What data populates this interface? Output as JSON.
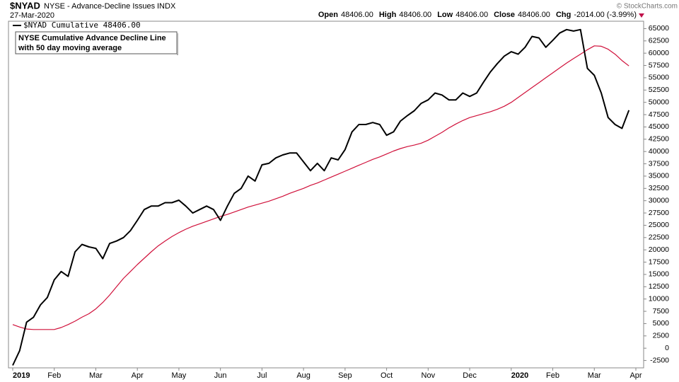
{
  "chart_data": {
    "type": "line",
    "symbol": "$NYAD",
    "title": "NYSE - Advance-Decline Issues",
    "exchange": "INDX",
    "date": "27-Mar-2020",
    "quote": [
      {
        "label": "Open",
        "value": "48406.00"
      },
      {
        "label": "High",
        "value": "48406.00"
      },
      {
        "label": "Low",
        "value": "48406.00"
      },
      {
        "label": "Close",
        "value": "48406.00"
      },
      {
        "label": "Chg",
        "value": "-2014.00 (-3.99%)"
      }
    ],
    "credit": "© StockCharts.com",
    "annotation": [
      "NYSE Cumulative Advance Decline Line",
      "with 50 day moving average"
    ],
    "categories": [
      "2019",
      null,
      null,
      null,
      null,
      null,
      "Feb",
      null,
      null,
      null,
      null,
      null,
      "Mar",
      null,
      null,
      null,
      null,
      null,
      "Apr",
      null,
      null,
      null,
      null,
      null,
      "May",
      null,
      null,
      null,
      null,
      null,
      "Jun",
      null,
      null,
      null,
      null,
      null,
      "Jul",
      null,
      null,
      null,
      null,
      null,
      "Aug",
      null,
      null,
      null,
      null,
      null,
      "Sep",
      null,
      null,
      null,
      null,
      null,
      "Oct",
      null,
      null,
      null,
      null,
      null,
      "Nov",
      null,
      null,
      null,
      null,
      null,
      "Dec",
      null,
      null,
      null,
      null,
      null,
      "2020",
      null,
      null,
      null,
      null,
      null,
      "Feb",
      null,
      null,
      null,
      null,
      null,
      "Mar",
      null,
      null,
      null,
      null,
      null,
      "Apr"
    ],
    "series": [
      {
        "name": "$NYAD Cumulative 48406.00",
        "color": "#000000",
        "width": 2,
        "values": [
          -3500,
          -500,
          5300,
          6300,
          8800,
          10300,
          13900,
          15600,
          14600,
          19600,
          21100,
          20600,
          20300,
          18200,
          21300,
          21800,
          22500,
          23900,
          26000,
          28200,
          28900,
          28900,
          29600,
          29600,
          30100,
          28900,
          27500,
          28200,
          28900,
          28200,
          26000,
          28900,
          31500,
          32500,
          35000,
          34000,
          37300,
          37600,
          38700,
          39300,
          39700,
          39700,
          37900,
          36100,
          37600,
          36100,
          38700,
          38300,
          40400,
          44000,
          45500,
          45500,
          45900,
          45500,
          43300,
          44000,
          46200,
          47300,
          48300,
          49800,
          50500,
          51900,
          51500,
          50500,
          50500,
          51900,
          51200,
          51900,
          54100,
          56200,
          57900,
          59400,
          60300,
          59800,
          61200,
          63400,
          63100,
          61200,
          62600,
          64100,
          64800,
          64500,
          64800,
          56900,
          55500,
          51900,
          46900,
          45500,
          44700,
          48406,
          null
        ]
      },
      {
        "color": "#d0103a",
        "width": 1.2,
        "values": [
          4800,
          4300,
          3900,
          3800,
          3800,
          3800,
          3800,
          4200,
          4800,
          5500,
          6300,
          7000,
          8000,
          9300,
          10800,
          12500,
          14200,
          15600,
          17000,
          18300,
          19600,
          20800,
          21800,
          22700,
          23500,
          24200,
          24800,
          25300,
          25800,
          26300,
          26800,
          27200,
          27700,
          28200,
          28700,
          29100,
          29500,
          29900,
          30400,
          30900,
          31500,
          32000,
          32500,
          33100,
          33600,
          34200,
          34800,
          35400,
          36000,
          36600,
          37200,
          37800,
          38400,
          38900,
          39500,
          40100,
          40600,
          41000,
          41300,
          41700,
          42300,
          43100,
          43900,
          44800,
          45600,
          46300,
          46900,
          47300,
          47700,
          48100,
          48600,
          49200,
          50000,
          51000,
          52000,
          53000,
          54000,
          55000,
          56000,
          57000,
          58000,
          58900,
          59800,
          60700,
          61500,
          61400,
          60800,
          59800,
          58500,
          57400,
          null
        ]
      }
    ],
    "ylim": [
      -4000,
      66500
    ],
    "yticks": [
      -2500,
      0,
      2500,
      5000,
      7500,
      10000,
      12500,
      15000,
      17500,
      20000,
      22500,
      25000,
      27500,
      30000,
      32500,
      35000,
      37500,
      40000,
      42500,
      45000,
      47500,
      50000,
      52500,
      55000,
      57500,
      60000,
      62500,
      65000
    ],
    "grid": false
  }
}
